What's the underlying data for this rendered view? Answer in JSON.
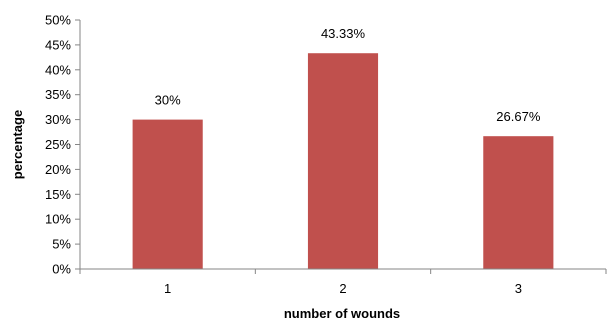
{
  "chart_data": {
    "type": "bar",
    "title": "",
    "xlabel": "number of wounds",
    "ylabel": "percentage",
    "categories": [
      "1",
      "2",
      "3"
    ],
    "values": [
      30,
      43.33,
      26.67
    ],
    "data_labels": [
      "30%",
      "43.33%",
      "26.67%"
    ],
    "yticks": [
      "0%",
      "5%",
      "10%",
      "15%",
      "20%",
      "25%",
      "30%",
      "35%",
      "40%",
      "45%",
      "50%"
    ],
    "ylim": [
      0,
      50
    ],
    "grid": false,
    "legend": "none",
    "bar_color": "#c0504d"
  }
}
